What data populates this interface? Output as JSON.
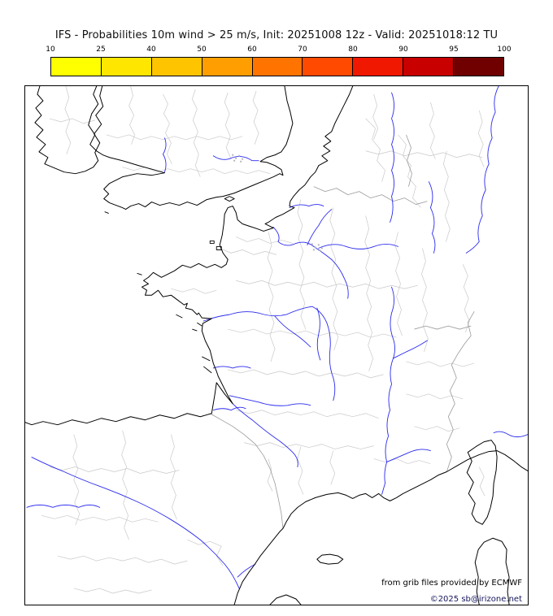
{
  "title": "IFS - Probabilities 10m wind > 25 m/s, Init: 20251008 12z - Valid: 20251018:12 TU",
  "legend": {
    "tick_labels": [
      "10",
      "25",
      "40",
      "50",
      "60",
      "70",
      "80",
      "90",
      "95",
      "100"
    ],
    "segment_colors": [
      "#ffff00",
      "#ffe600",
      "#ffc400",
      "#ff9e00",
      "#ff7400",
      "#ff4a00",
      "#f01800",
      "#c80000",
      "#700000"
    ],
    "unit": "probability-percent"
  },
  "map": {
    "region": "Western Europe (British Isles, France, Iberia, Corsica, Sardinia)",
    "colors": {
      "coastline": "#000000",
      "rivers": "#2a2aee",
      "admin_boundaries": "#c9c9c9",
      "country_borders": "#9a9a9a",
      "sea": "#ffffff"
    }
  },
  "attribution": {
    "provider": "from grib files provided by ECMWF",
    "copyright": "©2025 sb@irizone.net"
  }
}
